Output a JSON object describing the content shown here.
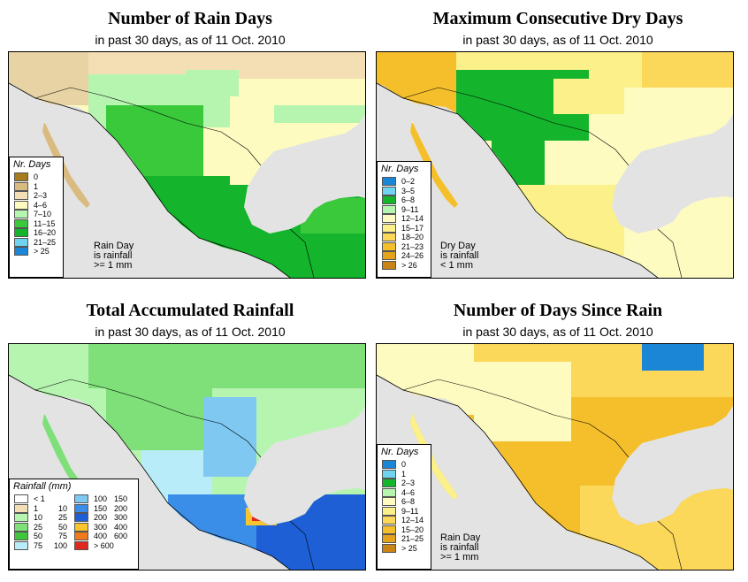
{
  "panels": [
    {
      "title": "Number of Rain Days",
      "subtitle": "in past 30 days, as of  11 Oct. 2010",
      "legend_title": "Nr. Days",
      "legend": [
        {
          "label": "0",
          "color": "#a67c1c"
        },
        {
          "label": "1",
          "color": "#d9bb82"
        },
        {
          "label": "2–3",
          "color": "#f3dfb3"
        },
        {
          "label": "4–6",
          "color": "#fdfbc0"
        },
        {
          "label": "7–10",
          "color": "#b6f5b0"
        },
        {
          "label": "11–15",
          "color": "#39c93b"
        },
        {
          "label": "16–20",
          "color": "#14b42c"
        },
        {
          "label": "21–25",
          "color": "#70d4f0"
        },
        {
          "label": "> 25",
          "color": "#1b86d6"
        }
      ],
      "note": [
        "Rain Day",
        "is rainfall",
        ">= 1 mm"
      ]
    },
    {
      "title": "Maximum Consecutive Dry Days",
      "subtitle": "in past 30 days, as of  11 Oct. 2010",
      "legend_title": "Nr. Days",
      "legend": [
        {
          "label": "0–2",
          "color": "#1b86d6"
        },
        {
          "label": "3–5",
          "color": "#70d4f0"
        },
        {
          "label": "6–8",
          "color": "#14b42c"
        },
        {
          "label": "9–11",
          "color": "#b6f5b0"
        },
        {
          "label": "12–14",
          "color": "#fdfbc0"
        },
        {
          "label": "15–17",
          "color": "#fbf08a"
        },
        {
          "label": "18–20",
          "color": "#fbd75a"
        },
        {
          "label": "21–23",
          "color": "#f5bf2c"
        },
        {
          "label": "24–26",
          "color": "#e4a31c"
        },
        {
          "label": "> 26",
          "color": "#c98416"
        }
      ],
      "note": [
        "Dry Day",
        "is rainfall",
        "< 1 mm"
      ]
    },
    {
      "title": "Total Accumulated Rainfall",
      "subtitle": "in past 30 days, as of  11 Oct. 2010",
      "legend_title": "Rainfall (mm)",
      "legend_left": [
        {
          "a": "< 1",
          "b": "",
          "color": "#ffffff"
        },
        {
          "a": "1",
          "b": "10",
          "color": "#f3dfb3"
        },
        {
          "a": "10",
          "b": "25",
          "color": "#b6f5b0"
        },
        {
          "a": "25",
          "b": "50",
          "color": "#7fe07a"
        },
        {
          "a": "50",
          "b": "75",
          "color": "#3fc63d"
        },
        {
          "a": "75",
          "b": "100",
          "color": "#b8ecf8"
        }
      ],
      "legend_right": [
        {
          "a": "100",
          "b": "150",
          "color": "#7fc8f2"
        },
        {
          "a": "150",
          "b": "200",
          "color": "#3a8ee8"
        },
        {
          "a": "200",
          "b": "300",
          "color": "#1e5fd6"
        },
        {
          "a": "300",
          "b": "400",
          "color": "#f8c62c"
        },
        {
          "a": "400",
          "b": "600",
          "color": "#f07a1c"
        },
        {
          "a": "> 600",
          "b": "",
          "color": "#e0281c"
        }
      ]
    },
    {
      "title": "Number of Days Since Rain",
      "subtitle": "in past 30 days, as of  11 Oct. 2010",
      "legend_title": "Nr. Days",
      "legend": [
        {
          "label": "0",
          "color": "#1b86d6"
        },
        {
          "label": "1",
          "color": "#70d4f0"
        },
        {
          "label": "2–3",
          "color": "#14b42c"
        },
        {
          "label": "4–6",
          "color": "#b6f5b0"
        },
        {
          "label": "6–8",
          "color": "#fdfbc0"
        },
        {
          "label": "9–11",
          "color": "#fbf08a"
        },
        {
          "label": "12–14",
          "color": "#fbd75a"
        },
        {
          "label": "15–20",
          "color": "#f5bf2c"
        },
        {
          "label": "21–25",
          "color": "#e4a31c"
        },
        {
          "label": "> 25",
          "color": "#c98416"
        }
      ],
      "note": [
        "Rain Day",
        "is rainfall",
        ">= 1 mm"
      ]
    }
  ],
  "colors": {
    "ocean": "#e3e3e3",
    "border": "#000000"
  }
}
